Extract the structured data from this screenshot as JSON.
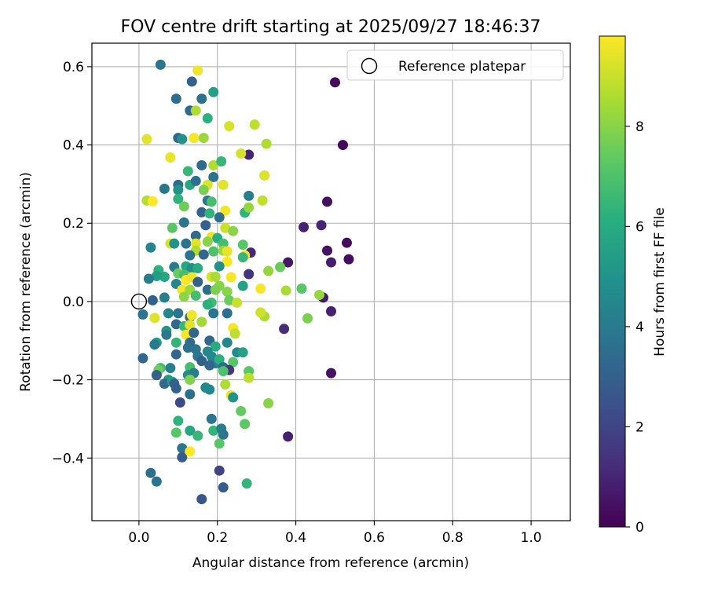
{
  "chart_data": {
    "type": "scatter",
    "title": "FOV centre drift starting at 2025/09/27 18:46:37",
    "xlabel": "Angular distance from reference (arcmin)",
    "ylabel": "Rotation from reference (arcmin)",
    "xlim": [
      -0.12,
      1.1
    ],
    "ylim": [
      -0.56,
      0.66
    ],
    "xticks": [
      0.0,
      0.2,
      0.4,
      0.6,
      0.8,
      1.0
    ],
    "xtick_labels": [
      "0.0",
      "0.2",
      "0.4",
      "0.6",
      "0.8",
      "1.0"
    ],
    "yticks": [
      -0.4,
      -0.2,
      0.0,
      0.2,
      0.4,
      0.6
    ],
    "ytick_labels": [
      "−0.4",
      "−0.2",
      "0.0",
      "0.2",
      "0.4",
      "0.6"
    ],
    "grid": true,
    "legend": {
      "label": "Reference platepar",
      "placement": "top-right"
    },
    "reference_point": {
      "x": 0.0,
      "y": 0.0
    },
    "colorbar": {
      "label": "Hours from first FF file",
      "colormap": "viridis",
      "range": [
        0,
        9.8
      ],
      "ticks": [
        0,
        2,
        4,
        6,
        8
      ],
      "tick_labels": [
        "0",
        "2",
        "4",
        "6",
        "8"
      ]
    },
    "points": [
      [
        0.5,
        0.56,
        0.3
      ],
      [
        0.52,
        0.4,
        0.2
      ],
      [
        0.48,
        0.255,
        0.4
      ],
      [
        0.42,
        0.19,
        0.9
      ],
      [
        0.465,
        0.195,
        1.0
      ],
      [
        0.53,
        0.15,
        0.3
      ],
      [
        0.48,
        0.13,
        0.5
      ],
      [
        0.535,
        0.108,
        0.4
      ],
      [
        0.49,
        0.1,
        0.8
      ],
      [
        0.38,
        0.1,
        0.6
      ],
      [
        0.47,
        0.01,
        0.7
      ],
      [
        0.49,
        -0.025,
        0.9
      ],
      [
        0.37,
        -0.07,
        1.2
      ],
      [
        0.49,
        -0.183,
        0.5
      ],
      [
        0.38,
        -0.345,
        0.9
      ],
      [
        0.28,
        0.375,
        1.0
      ],
      [
        0.285,
        0.125,
        1.1
      ],
      [
        0.28,
        0.07,
        1.5
      ],
      [
        0.055,
        0.605,
        3.8
      ],
      [
        0.135,
        0.562,
        3.0
      ],
      [
        0.095,
        0.518,
        3.5
      ],
      [
        0.16,
        0.518,
        3.6
      ],
      [
        0.13,
        0.488,
        3.3
      ],
      [
        0.19,
        0.535,
        5.5
      ],
      [
        0.15,
        0.59,
        9.6
      ],
      [
        0.175,
        0.468,
        6.2
      ],
      [
        0.145,
        0.488,
        8.6
      ],
      [
        0.23,
        0.448,
        9.2
      ],
      [
        0.295,
        0.452,
        8.8
      ],
      [
        0.1,
        0.418,
        3.2
      ],
      [
        0.11,
        0.415,
        5.0
      ],
      [
        0.02,
        0.415,
        9.4
      ],
      [
        0.14,
        0.418,
        9.7
      ],
      [
        0.165,
        0.418,
        8.3
      ],
      [
        0.26,
        0.378,
        9.2
      ],
      [
        0.325,
        0.403,
        8.6
      ],
      [
        0.08,
        0.368,
        9.5
      ],
      [
        0.16,
        0.348,
        3.4
      ],
      [
        0.19,
        0.348,
        8.6
      ],
      [
        0.21,
        0.358,
        6.5
      ],
      [
        0.125,
        0.333,
        6.5
      ],
      [
        0.19,
        0.318,
        3.7
      ],
      [
        0.32,
        0.322,
        9.3
      ],
      [
        0.065,
        0.288,
        3.9
      ],
      [
        0.1,
        0.298,
        3.5
      ],
      [
        0.1,
        0.285,
        5.0
      ],
      [
        0.13,
        0.298,
        5.8
      ],
      [
        0.145,
        0.308,
        3.6
      ],
      [
        0.175,
        0.298,
        9.3
      ],
      [
        0.215,
        0.298,
        9.4
      ],
      [
        0.28,
        0.27,
        4.2
      ],
      [
        0.02,
        0.258,
        8.7
      ],
      [
        0.035,
        0.256,
        9.8
      ],
      [
        0.1,
        0.262,
        6.3
      ],
      [
        0.16,
        0.228,
        3.1
      ],
      [
        0.175,
        0.258,
        3.8
      ],
      [
        0.185,
        0.255,
        6.8
      ],
      [
        0.115,
        0.243,
        7.6
      ],
      [
        0.165,
        0.285,
        7.8
      ],
      [
        0.27,
        0.227,
        6.3
      ],
      [
        0.28,
        0.24,
        8.2
      ],
      [
        0.22,
        0.232,
        9.6
      ],
      [
        0.315,
        0.258,
        8.9
      ],
      [
        0.18,
        0.225,
        6.3
      ],
      [
        0.205,
        0.215,
        3.5
      ],
      [
        0.115,
        0.202,
        3.8
      ],
      [
        0.17,
        0.195,
        3.0
      ],
      [
        0.085,
        0.188,
        7.2
      ],
      [
        0.22,
        0.188,
        9.0
      ],
      [
        0.24,
        0.18,
        8.0
      ],
      [
        0.145,
        0.168,
        3.4
      ],
      [
        0.185,
        0.165,
        9.5
      ],
      [
        0.2,
        0.162,
        6.0
      ],
      [
        0.08,
        0.148,
        9.2
      ],
      [
        0.09,
        0.148,
        5.0
      ],
      [
        0.12,
        0.148,
        3.7
      ],
      [
        0.145,
        0.148,
        9.4
      ],
      [
        0.175,
        0.153,
        8.0
      ],
      [
        0.215,
        0.148,
        6.8
      ],
      [
        0.265,
        0.145,
        7.2
      ],
      [
        0.03,
        0.138,
        4.4
      ],
      [
        0.145,
        0.13,
        8.6
      ],
      [
        0.19,
        0.128,
        7.0
      ],
      [
        0.215,
        0.13,
        8.3
      ],
      [
        0.225,
        0.128,
        9.5
      ],
      [
        0.27,
        0.118,
        9.6
      ],
      [
        0.13,
        0.118,
        3.8
      ],
      [
        0.165,
        0.12,
        3.2
      ],
      [
        0.265,
        0.113,
        6.5
      ],
      [
        0.225,
        0.102,
        9.8
      ],
      [
        0.09,
        0.088,
        4.0
      ],
      [
        0.12,
        0.09,
        5.8
      ],
      [
        0.135,
        0.085,
        4.8
      ],
      [
        0.15,
        0.085,
        6.0
      ],
      [
        0.205,
        0.09,
        4.9
      ],
      [
        0.05,
        0.08,
        6.2
      ],
      [
        0.065,
        0.063,
        5.8
      ],
      [
        0.045,
        0.065,
        5.4
      ],
      [
        0.025,
        0.058,
        4.1
      ],
      [
        0.1,
        0.072,
        7.5
      ],
      [
        0.115,
        0.068,
        6.8
      ],
      [
        0.12,
        0.055,
        9.9
      ],
      [
        0.135,
        0.062,
        9.6
      ],
      [
        0.15,
        0.05,
        3.0
      ],
      [
        0.185,
        0.063,
        9.2
      ],
      [
        0.195,
        0.063,
        8.5
      ],
      [
        0.095,
        0.045,
        4.5
      ],
      [
        0.205,
        0.04,
        8.0
      ],
      [
        0.235,
        0.062,
        9.7
      ],
      [
        0.265,
        0.04,
        5.6
      ],
      [
        0.31,
        0.033,
        9.7
      ],
      [
        0.33,
        0.078,
        8.2
      ],
      [
        0.36,
        0.088,
        7.5
      ],
      [
        0.375,
        0.028,
        8.5
      ],
      [
        0.415,
        0.033,
        7.2
      ],
      [
        0.46,
        0.017,
        8.2
      ],
      [
        0.43,
        -0.043,
        7.8
      ],
      [
        0.11,
        0.03,
        9.6
      ],
      [
        0.13,
        0.03,
        8.3
      ],
      [
        0.175,
        0.03,
        3.4
      ],
      [
        0.195,
        0.03,
        7.8
      ],
      [
        0.225,
        0.025,
        8.0
      ],
      [
        0.115,
        0.012,
        8.1
      ],
      [
        0.145,
        0.015,
        6.8
      ],
      [
        0.065,
        0.01,
        4.2
      ],
      [
        0.035,
        0.003,
        3.0
      ],
      [
        0.23,
        0.003,
        7.5
      ],
      [
        0.185,
        -0.003,
        6.7
      ],
      [
        0.175,
        -0.008,
        6.2
      ],
      [
        0.25,
        -0.003,
        9.0
      ],
      [
        0.32,
        -0.038,
        8.6
      ],
      [
        0.31,
        -0.028,
        9.1
      ],
      [
        0.01,
        -0.033,
        3.8
      ],
      [
        0.04,
        -0.042,
        9.3
      ],
      [
        0.075,
        -0.03,
        4.5
      ],
      [
        0.1,
        -0.03,
        3.8
      ],
      [
        0.13,
        -0.04,
        3.6
      ],
      [
        0.135,
        -0.035,
        9.6
      ],
      [
        0.19,
        -0.03,
        3.8
      ],
      [
        0.225,
        -0.03,
        3.6
      ],
      [
        0.24,
        -0.068,
        9.7
      ],
      [
        0.245,
        -0.082,
        8.8
      ],
      [
        0.095,
        -0.058,
        3.3
      ],
      [
        0.115,
        -0.063,
        6.5
      ],
      [
        0.13,
        -0.06,
        9.4
      ],
      [
        0.16,
        -0.052,
        8.4
      ],
      [
        0.07,
        -0.075,
        5.2
      ],
      [
        0.07,
        -0.085,
        3.9
      ],
      [
        0.12,
        -0.085,
        9.7
      ],
      [
        0.14,
        -0.08,
        3.2
      ],
      [
        0.095,
        -0.105,
        6.4
      ],
      [
        0.045,
        -0.105,
        5.4
      ],
      [
        0.04,
        -0.11,
        4.0
      ],
      [
        0.13,
        -0.105,
        3.3
      ],
      [
        0.18,
        -0.1,
        3.2
      ],
      [
        0.195,
        -0.115,
        6.0
      ],
      [
        0.225,
        -0.105,
        4.5
      ],
      [
        0.125,
        -0.118,
        3.6
      ],
      [
        0.145,
        -0.122,
        3.8
      ],
      [
        0.175,
        -0.128,
        4.5
      ],
      [
        0.25,
        -0.13,
        4.6
      ],
      [
        0.265,
        -0.13,
        5.6
      ],
      [
        0.095,
        -0.135,
        3.2
      ],
      [
        0.15,
        -0.14,
        3.8
      ],
      [
        0.185,
        -0.14,
        4.6
      ],
      [
        0.16,
        -0.152,
        3.0
      ],
      [
        0.195,
        -0.158,
        4.4
      ],
      [
        0.205,
        -0.148,
        6.2
      ],
      [
        0.24,
        -0.155,
        7.2
      ],
      [
        0.01,
        -0.145,
        3.2
      ],
      [
        0.08,
        -0.17,
        4.2
      ],
      [
        0.055,
        -0.17,
        6.7
      ],
      [
        0.05,
        -0.175,
        7.6
      ],
      [
        0.045,
        -0.188,
        3.0
      ],
      [
        0.13,
        -0.168,
        6.8
      ],
      [
        0.18,
        -0.163,
        3.2
      ],
      [
        0.215,
        -0.168,
        3.5
      ],
      [
        0.23,
        -0.175,
        1.6
      ],
      [
        0.215,
        -0.178,
        7.0
      ],
      [
        0.28,
        -0.178,
        7.2
      ],
      [
        0.125,
        -0.188,
        4.8
      ],
      [
        0.14,
        -0.183,
        4.1
      ],
      [
        0.075,
        -0.2,
        5.3
      ],
      [
        0.065,
        -0.21,
        3.4
      ],
      [
        0.085,
        -0.205,
        5.5
      ],
      [
        0.09,
        -0.21,
        3.0
      ],
      [
        0.095,
        -0.222,
        3.0
      ],
      [
        0.13,
        -0.2,
        7.9
      ],
      [
        0.17,
        -0.22,
        4.5
      ],
      [
        0.18,
        -0.225,
        4.6
      ],
      [
        0.22,
        -0.212,
        8.6
      ],
      [
        0.235,
        -0.24,
        9.6
      ],
      [
        0.24,
        -0.245,
        5.0
      ],
      [
        0.28,
        -0.195,
        8.8
      ],
      [
        0.13,
        -0.237,
        3.6
      ],
      [
        0.105,
        -0.258,
        2.2
      ],
      [
        0.1,
        -0.305,
        6.3
      ],
      [
        0.185,
        -0.3,
        3.8
      ],
      [
        0.26,
        -0.28,
        7.4
      ],
      [
        0.33,
        -0.26,
        8.0
      ],
      [
        0.095,
        -0.335,
        7.2
      ],
      [
        0.13,
        -0.33,
        5.8
      ],
      [
        0.15,
        -0.343,
        6.5
      ],
      [
        0.19,
        -0.33,
        6.4
      ],
      [
        0.21,
        -0.325,
        4.2
      ],
      [
        0.215,
        -0.34,
        3.7
      ],
      [
        0.27,
        -0.313,
        7.3
      ],
      [
        0.205,
        -0.363,
        7.2
      ],
      [
        0.11,
        -0.375,
        3.8
      ],
      [
        0.11,
        -0.398,
        2.8
      ],
      [
        0.13,
        -0.383,
        9.8
      ],
      [
        0.03,
        -0.438,
        3.6
      ],
      [
        0.045,
        -0.46,
        3.7
      ],
      [
        0.205,
        -0.432,
        2.0
      ],
      [
        0.215,
        -0.475,
        2.8
      ],
      [
        0.275,
        -0.465,
        6.4
      ],
      [
        0.16,
        -0.505,
        2.6
      ]
    ]
  }
}
